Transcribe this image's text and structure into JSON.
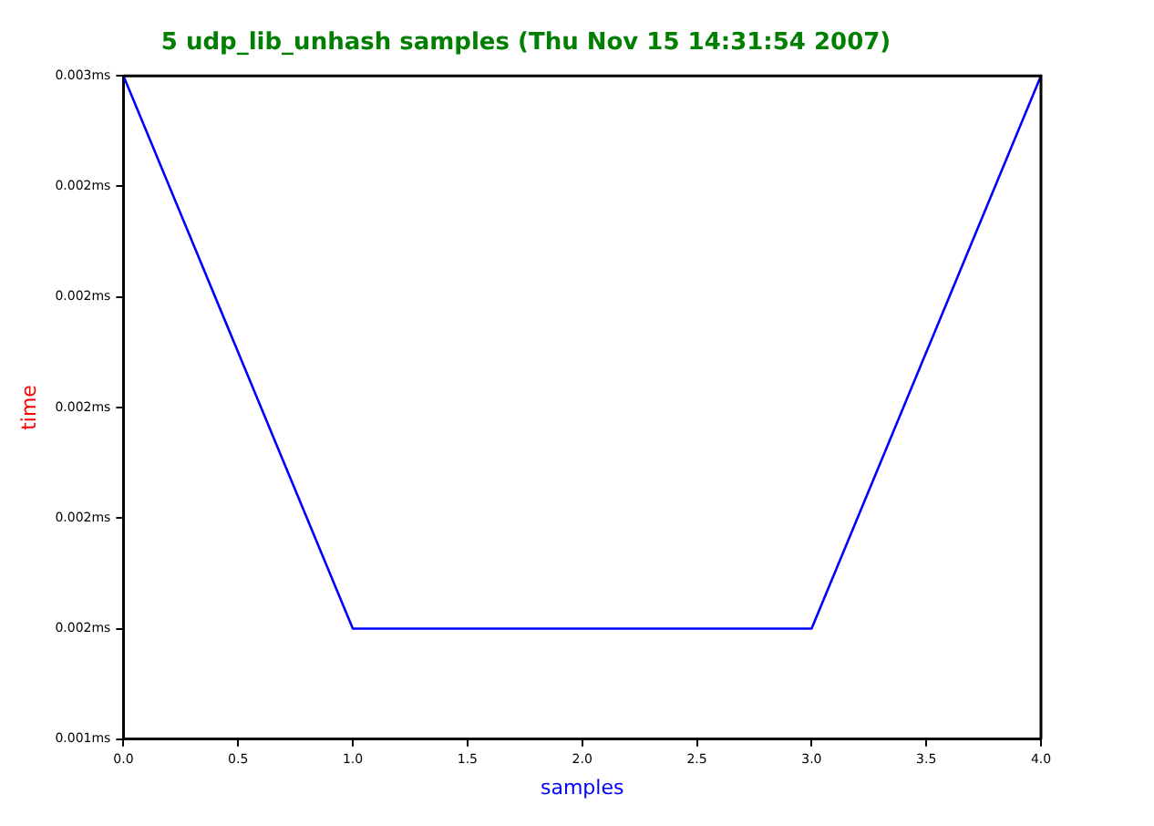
{
  "chart_data": {
    "type": "line",
    "title": "5 udp_lib_unhash samples (Thu Nov 15 14:31:54 2007)",
    "xlabel": "samples",
    "ylabel": "time",
    "x": [
      0,
      1,
      2,
      3,
      4
    ],
    "series": [
      {
        "color": "#0000ff",
        "values": [
          0.0026,
          0.0016,
          0.0016,
          0.0016,
          0.0026
        ]
      }
    ],
    "xlim": [
      0,
      4
    ],
    "xticks": [
      {
        "value": 0,
        "label": "0.0"
      },
      {
        "value": 0.5,
        "label": "0.5"
      },
      {
        "value": 1,
        "label": "1.0"
      },
      {
        "value": 1.5,
        "label": "1.5"
      },
      {
        "value": 2,
        "label": "2.0"
      },
      {
        "value": 2.5,
        "label": "2.5"
      },
      {
        "value": 3,
        "label": "3.0"
      },
      {
        "value": 3.5,
        "label": "3.5"
      },
      {
        "value": 4,
        "label": "4.0"
      }
    ],
    "ylim": [
      0.0014,
      0.0026
    ],
    "yticks": [
      {
        "value": 0.0014,
        "label": "0.001ms"
      },
      {
        "value": 0.0016,
        "label": "0.002ms"
      },
      {
        "value": 0.0018,
        "label": "0.002ms"
      },
      {
        "value": 0.002,
        "label": "0.002ms"
      },
      {
        "value": 0.0022,
        "label": "0.002ms"
      },
      {
        "value": 0.0024,
        "label": "0.002ms"
      },
      {
        "value": 0.0026,
        "label": "0.003ms"
      }
    ],
    "grid": false,
    "legend": false,
    "marker": "none",
    "line_style": "solid"
  }
}
